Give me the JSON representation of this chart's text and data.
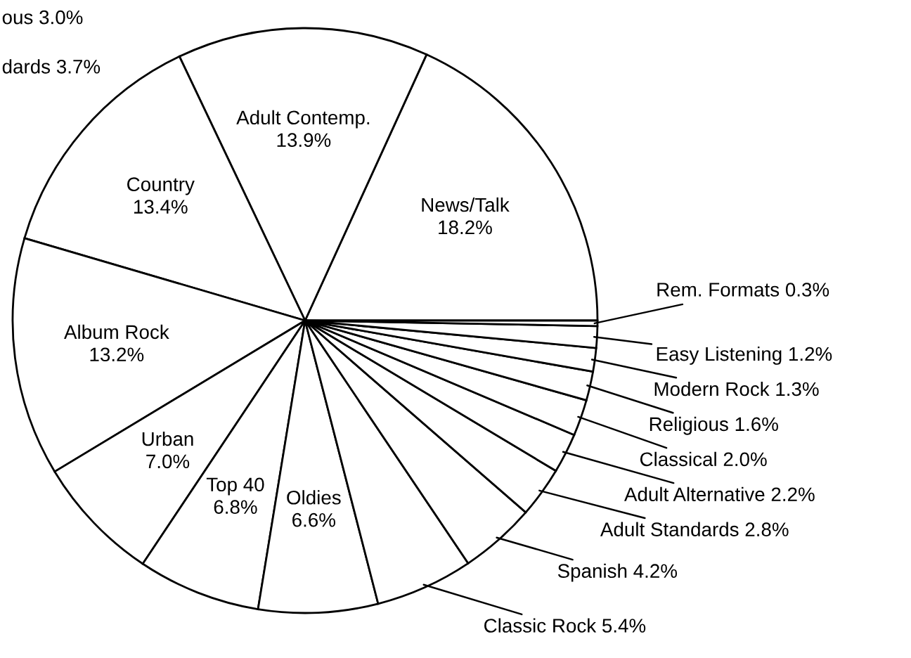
{
  "chart_data": {
    "type": "pie",
    "categories": [
      "News/Talk",
      "Adult Contemp.",
      "Country",
      "Album Rock",
      "Urban",
      "Top 40",
      "Oldies",
      "Classic Rock",
      "Spanish",
      "Adult Standards",
      "Adult Alternative",
      "Classical",
      "Religious",
      "Modern Rock",
      "Easy Listening",
      "Rem. Formats"
    ],
    "values": [
      18.2,
      13.9,
      13.4,
      13.2,
      7.0,
      6.8,
      6.6,
      5.4,
      4.2,
      2.8,
      2.2,
      2.0,
      1.6,
      1.3,
      1.2,
      0.3
    ],
    "colors": [
      "#ffffff",
      "#ffffff",
      "#ffffff",
      "#ffffff",
      "#ffffff",
      "#ffffff",
      "#ffffff",
      "#ffffff",
      "#ffffff",
      "#ffffff",
      "#ffffff",
      "#ffffff",
      "#ffffff",
      "#ffffff",
      "#ffffff",
      "#ffffff"
    ],
    "value_labels": [
      "18.2%",
      "13.9%",
      "13.4%",
      "13.2%",
      "7.0%",
      "6.8%",
      "6.6%",
      "5.4%",
      "4.2%",
      "2.8%",
      "2.2%",
      "2.0%",
      "1.6%",
      "1.3%",
      "1.2%",
      "0.3%"
    ],
    "annotations": [
      "ous 3.0%",
      "dards 3.7%"
    ]
  }
}
